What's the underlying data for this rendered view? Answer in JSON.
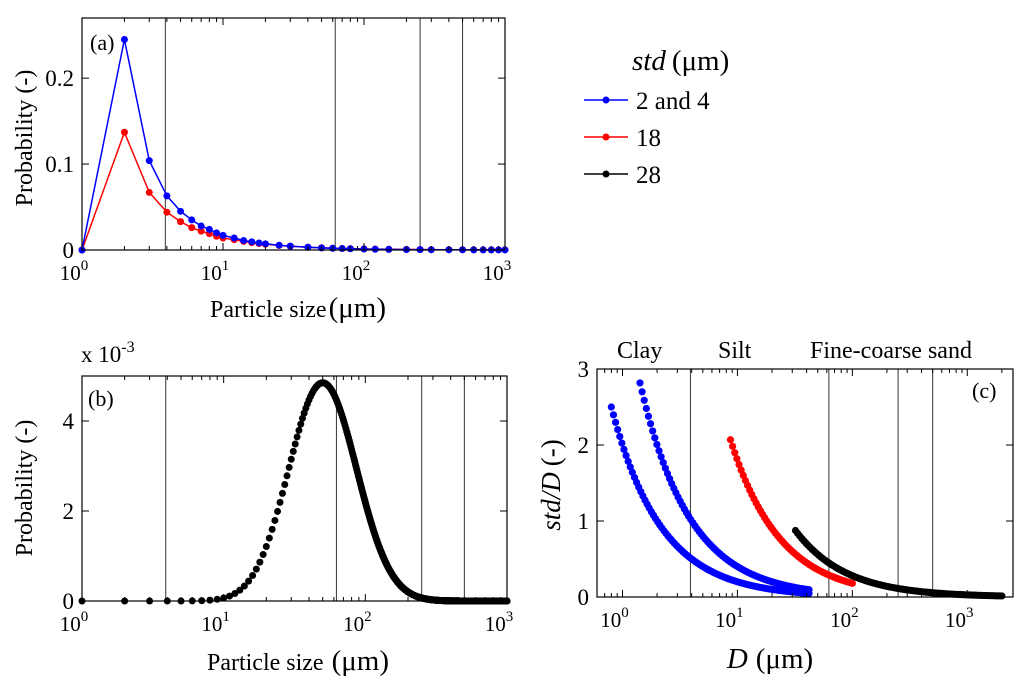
{
  "chart_data": [
    {
      "panel": "a",
      "type": "line",
      "panel_label": "(a)",
      "ylabel": "Probability (-)",
      "xlabel": "Particle size",
      "xlabel_unit": "(μm)",
      "xscale": "log",
      "xlim": [
        1,
        1000
      ],
      "ylim": [
        0,
        0.27
      ],
      "x_ticks": [
        1,
        10,
        100,
        1000
      ],
      "y_ticks": [
        0,
        0.1,
        0.2
      ],
      "y_tick_labels": [
        "0",
        "0.1",
        "0.2"
      ],
      "vlines": [
        3.9,
        62.5,
        250,
        500
      ],
      "series": [
        {
          "name": "2 and 4",
          "color": "#0000ff",
          "x": [
            1,
            2,
            3,
            4,
            5,
            6,
            7,
            8,
            9,
            10,
            12,
            14,
            16,
            18,
            20,
            25,
            30,
            40,
            50,
            60,
            70,
            80,
            100,
            120,
            150,
            200,
            250,
            300,
            400,
            500,
            600,
            700,
            800,
            900,
            1000
          ],
          "y": [
            0,
            0.245,
            0.104,
            0.063,
            0.045,
            0.035,
            0.028,
            0.024,
            0.02,
            0.017,
            0.014,
            0.011,
            0.0095,
            0.0082,
            0.0072,
            0.0056,
            0.0045,
            0.0032,
            0.0025,
            0.002,
            0.0017,
            0.0014,
            0.0011,
            0.0009,
            0.0007,
            0.0005,
            0.0004,
            0.0003,
            0.0002,
            0.0002,
            0.0001,
            0.0001,
            0.0001,
            0.0001,
            0.0001
          ]
        },
        {
          "name": "18",
          "color": "#ff0000",
          "x": [
            1,
            2,
            3,
            4,
            5,
            6,
            7,
            8,
            9,
            10,
            12,
            14,
            16,
            18,
            20,
            25,
            30,
            40,
            50,
            60,
            70,
            80,
            100,
            120,
            150,
            200,
            250,
            300,
            400,
            500,
            600,
            700,
            800,
            900,
            1000
          ],
          "y": [
            0,
            0.137,
            0.067,
            0.044,
            0.033,
            0.026,
            0.022,
            0.019,
            0.016,
            0.014,
            0.012,
            0.01,
            0.0085,
            0.0075,
            0.0067,
            0.0053,
            0.0044,
            0.0032,
            0.0026,
            0.0021,
            0.0018,
            0.0016,
            0.0013,
            0.0011,
            0.0009,
            0.0007,
            0.0006,
            0.0005,
            0.0004,
            0.0003,
            0.0003,
            0.0002,
            0.0002,
            0.0002,
            0.0002
          ]
        }
      ]
    },
    {
      "panel": "b",
      "type": "scatter",
      "panel_label": "(b)",
      "ylabel": "Probability (-)",
      "xlabel": "Particle size",
      "xlabel_unit": "(μm)",
      "xscale": "log",
      "xlim": [
        1,
        1000
      ],
      "ylim": [
        0,
        0.005
      ],
      "scale_note": "x 10",
      "scale_exp": "-3",
      "x_ticks": [
        1,
        10,
        100,
        1000
      ],
      "y_ticks": [
        0,
        2,
        4
      ],
      "y_tick_labels": [
        "0",
        "2",
        "4"
      ],
      "vlines": [
        3.9,
        62.5,
        250,
        500
      ],
      "series": [
        {
          "color": "#000000",
          "distribution": "lognormal",
          "peak_x": 50,
          "peak_y": 0.00485,
          "x_start": 1,
          "x_end": 1000
        }
      ]
    },
    {
      "panel": "c",
      "type": "scatter",
      "panel_label": "(c)",
      "ylabel": "std/D",
      "ylabel_unit": "(-)",
      "xlabel": "D",
      "xlabel_unit": "(μm)",
      "xscale": "log",
      "xlim": [
        0.6,
        2500
      ],
      "ylim": [
        0,
        3
      ],
      "x_ticks": [
        1,
        10,
        100,
        1000
      ],
      "y_ticks": [
        0,
        1,
        2,
        3
      ],
      "y_tick_labels": [
        "0",
        "1",
        "2",
        "3"
      ],
      "vlines": [
        3.9,
        62.5,
        250,
        500
      ],
      "region_labels": [
        "Clay",
        "Silt",
        "Fine-coarse sand"
      ],
      "series": [
        {
          "color": "#0000ff",
          "std": 2,
          "x_start": 0.8,
          "x_end": 42
        },
        {
          "color": "#0000ff",
          "std": 4,
          "x_start": 1.42,
          "x_end": 42
        },
        {
          "color": "#ff0000",
          "std": 18,
          "x_start": 8.7,
          "x_end": 100
        },
        {
          "color": "#000000",
          "std": 28,
          "x_start": 32,
          "x_end": 2000
        }
      ]
    }
  ],
  "legend": {
    "title_italic": "std",
    "title_unit": "(μm)",
    "entries": [
      {
        "label": "2 and 4",
        "color": "#0000ff"
      },
      {
        "label": "18",
        "color": "#ff0000"
      },
      {
        "label": "28",
        "color": "#000000"
      }
    ]
  }
}
